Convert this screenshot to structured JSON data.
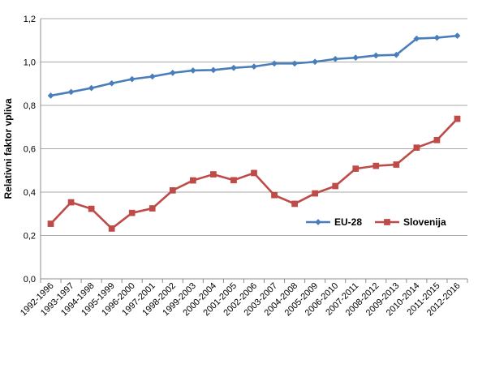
{
  "chart_data": {
    "type": "line",
    "title": "",
    "xlabel": "",
    "ylabel": "Relativni faktor vpliva",
    "ylim": [
      0,
      1.2
    ],
    "yticks": [
      "0,0",
      "0,2",
      "0,4",
      "0,6",
      "0,8",
      "1,0",
      "1,2"
    ],
    "grid": "horizontal",
    "legend_position": "right-middle",
    "categories": [
      "1992-1996",
      "1993-1997",
      "1994-1998",
      "1995-1999",
      "1996-2000",
      "1997-2001",
      "1998-2002",
      "1999-2003",
      "2000-2004",
      "2001-2005",
      "2002-2006",
      "2003-2007",
      "2004-2008",
      "2005-2009",
      "2006-2010",
      "2007-2011",
      "2008-2012",
      "2009-2013",
      "2010-2014",
      "2011-2015",
      "2012-2016"
    ],
    "series": [
      {
        "name": "EU-28",
        "color": "#4a7ebb",
        "marker": "diamond",
        "values": [
          0.845,
          0.862,
          0.88,
          0.902,
          0.921,
          0.933,
          0.95,
          0.961,
          0.963,
          0.973,
          0.979,
          0.993,
          0.993,
          1.001,
          1.014,
          1.02,
          1.03,
          1.033,
          1.108,
          1.112,
          1.121
        ]
      },
      {
        "name": "Slovenija",
        "color": "#be4b48",
        "marker": "square",
        "values": [
          0.254,
          0.353,
          0.323,
          0.232,
          0.304,
          0.325,
          0.408,
          0.454,
          0.482,
          0.455,
          0.488,
          0.386,
          0.346,
          0.394,
          0.428,
          0.508,
          0.521,
          0.527,
          0.605,
          0.64,
          0.738
        ]
      }
    ]
  }
}
